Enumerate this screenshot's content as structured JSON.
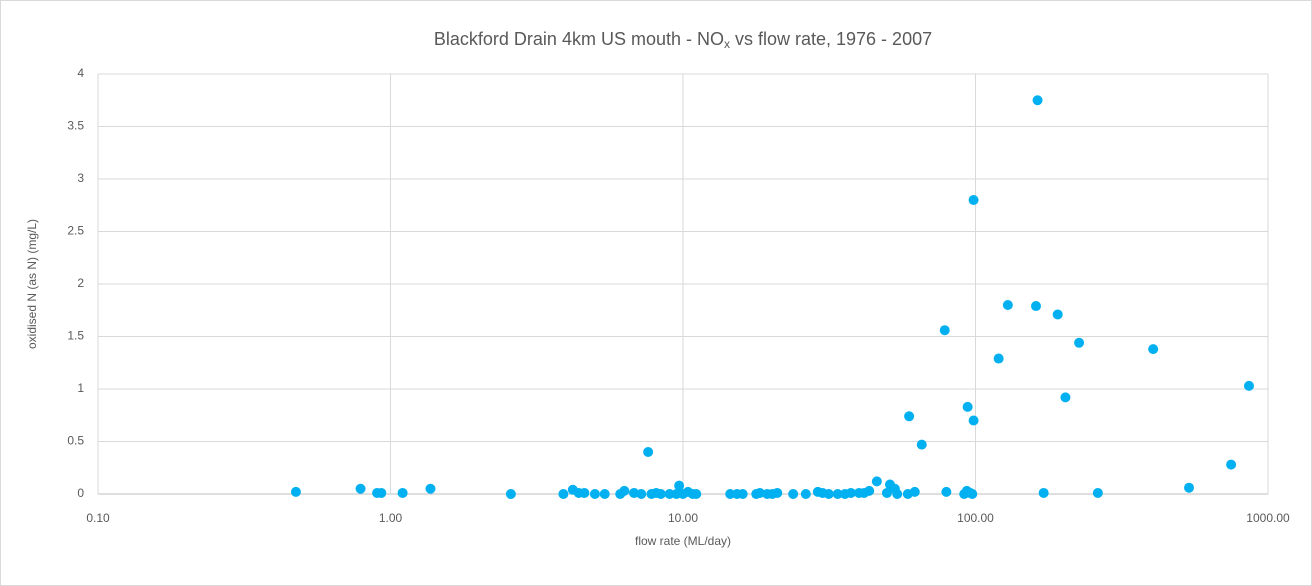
{
  "chart_data": {
    "type": "scatter",
    "title": [
      "Blackford Drain 4km US mouth - NO",
      "x",
      " vs flow rate, 1976 - 2007"
    ],
    "x_label": "flow rate (ML/day)",
    "y_label": "oxidised N (as N) (mg/L)",
    "x_scale": "log",
    "grid": true,
    "color": "#00b0f0",
    "xlim": [
      0.1,
      1000
    ],
    "xticks": [
      {
        "value": 0.1,
        "label": "0.10"
      },
      {
        "value": 1,
        "label": "1.00"
      },
      {
        "value": 10,
        "label": "10.00"
      },
      {
        "value": 100,
        "label": "100.00"
      },
      {
        "value": 1000,
        "label": "1000.00"
      }
    ],
    "ylim": [
      0,
      4
    ],
    "yticks": [
      0,
      0.5,
      1,
      1.5,
      2,
      2.5,
      3,
      3.5,
      4
    ],
    "x": [
      0.475,
      0.79,
      0.9,
      0.93,
      1.1,
      1.37,
      2.58,
      3.9,
      4.2,
      4.4,
      4.6,
      5.0,
      5.4,
      6.1,
      6.3,
      6.8,
      7.2,
      7.6,
      7.8,
      8.1,
      8.4,
      9.0,
      9.5,
      9.7,
      10,
      10.4,
      10.8,
      11.1,
      14.5,
      15.3,
      16,
      17.8,
      18.3,
      19.4,
      20.2,
      21,
      23.8,
      26.3,
      28.9,
      30,
      31.5,
      33.8,
      35.8,
      37.5,
      40,
      41.6,
      43.3,
      46,
      49.8,
      51,
      53,
      54,
      59.3,
      58.7,
      62,
      65.5,
      78.5,
      79.5,
      91.5,
      93.4,
      94,
      96,
      97.5,
      98.5,
      98.5,
      120,
      129,
      161,
      163,
      171,
      191,
      203,
      226,
      262,
      405,
      537,
      748,
      861
    ],
    "values": [
      0.02,
      0.05,
      0.01,
      0.01,
      0.01,
      0.05,
      0,
      0,
      0.04,
      0.01,
      0.01,
      0,
      0,
      0,
      0.03,
      0.01,
      0,
      0.4,
      0,
      0.01,
      0,
      0,
      0,
      0.08,
      0,
      0.02,
      0,
      0,
      0,
      0,
      0,
      0,
      0.01,
      0,
      0,
      0.01,
      0,
      0,
      0.02,
      0.01,
      0,
      0,
      0,
      0.01,
      0.01,
      0.01,
      0.03,
      0.12,
      0.01,
      0.09,
      0.05,
      0,
      0.74,
      0,
      0.02,
      0.47,
      1.56,
      0.02,
      0,
      0.03,
      0.83,
      0.01,
      0,
      2.8,
      0.7,
      1.29,
      1.8,
      1.79,
      3.75,
      0.01,
      1.71,
      0.92,
      1.44,
      0.01,
      1.38,
      0.06,
      0.28,
      1.03
    ]
  }
}
